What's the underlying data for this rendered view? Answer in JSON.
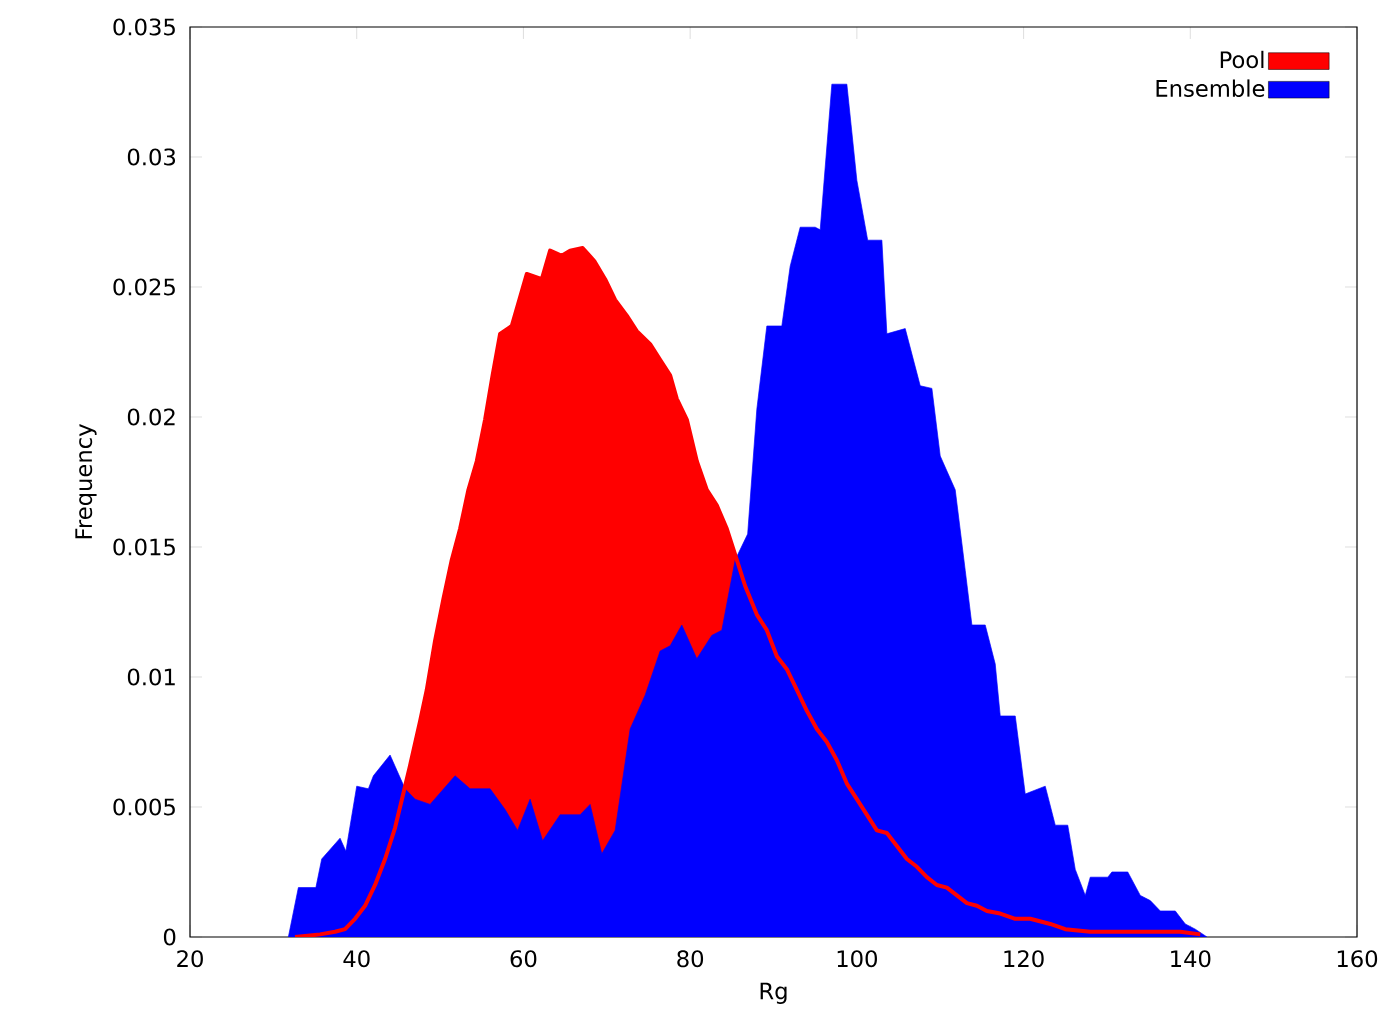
{
  "chart_data": {
    "type": "area",
    "xlabel": "Rg",
    "ylabel": "Frequency",
    "xlim": [
      20,
      160
    ],
    "ylim": [
      0,
      0.035
    ],
    "xticks": [
      20,
      40,
      60,
      80,
      100,
      120,
      140,
      160
    ],
    "yticks": [
      0,
      0.005,
      0.01,
      0.015,
      0.02,
      0.025,
      0.03,
      0.035
    ],
    "legend": "top right",
    "grid": false,
    "series": [
      {
        "name": "Pool",
        "color": "#ff0000",
        "x": [
          32.6,
          35.6,
          37.4,
          38.6,
          39.8,
          41,
          42.2,
          43.4,
          44.6,
          45.8,
          46.4,
          47.6,
          48.4,
          49.4,
          50.4,
          51.4,
          52.4,
          53.4,
          54.4,
          55.4,
          56.3,
          57.2,
          58.6,
          60.4,
          62.2,
          63.2,
          64.6,
          65.6,
          67.1,
          68.5,
          69.8,
          71,
          72.4,
          73.6,
          75.2,
          76.4,
          77.6,
          78.4,
          79.6,
          80.8,
          82,
          83.2,
          84.4,
          85.6,
          86.6,
          88,
          89.2,
          90.4,
          91.6,
          92.8,
          94,
          95.2,
          96.4,
          97.6,
          98.8,
          100,
          101.2,
          102.4,
          103.6,
          104.8,
          106,
          107.2,
          108.4,
          109.6,
          110.8,
          112,
          113.2,
          114.4,
          115.6,
          117.2,
          119,
          120.8,
          123.2,
          125,
          128,
          131.6,
          135.2,
          138.8,
          141.2
        ],
        "values": [
          0,
          0.0001,
          0.0002,
          0.0003,
          0.0007,
          0.0012,
          0.002,
          0.003,
          0.0042,
          0.0058,
          0.0066,
          0.0083,
          0.0095,
          0.0114,
          0.013,
          0.0145,
          0.0157,
          0.0172,
          0.0183,
          0.0199,
          0.0216,
          0.0232,
          0.0235,
          0.0255,
          0.0253,
          0.0264,
          0.0262,
          0.0264,
          0.0265,
          0.026,
          0.0253,
          0.0245,
          0.0239,
          0.0233,
          0.0228,
          0.0222,
          0.0216,
          0.0207,
          0.0199,
          0.0183,
          0.0172,
          0.0166,
          0.0157,
          0.0145,
          0.0135,
          0.0124,
          0.0118,
          0.0108,
          0.0103,
          0.0095,
          0.0087,
          0.008,
          0.0075,
          0.0068,
          0.0059,
          0.0053,
          0.0047,
          0.0041,
          0.004,
          0.0035,
          0.003,
          0.0027,
          0.0023,
          0.002,
          0.0019,
          0.0016,
          0.0013,
          0.0012,
          0.001,
          0.0009,
          0.0007,
          0.0007,
          0.0005,
          0.0003,
          0.0002,
          0.0002,
          0.0002,
          0.0002,
          0.0001
        ]
      },
      {
        "name": "Ensemble",
        "color": "#0000ff",
        "x": [
          31.8,
          33,
          35.1,
          35.8,
          38,
          38.7,
          40,
          41.4,
          42,
          44,
          45.8,
          47,
          48.8,
          51.8,
          53.6,
          56,
          57.8,
          59.3,
          60.8,
          62.3,
          64.4,
          66.8,
          68,
          69.4,
          71,
          72.8,
          74.6,
          76.4,
          77.6,
          79,
          80.8,
          82.6,
          83.8,
          85.4,
          86.9,
          88,
          89.2,
          91,
          92,
          93.2,
          95,
          95.6,
          97,
          98.8,
          100,
          101.3,
          103,
          103.6,
          105.8,
          107.6,
          109,
          110,
          111.8,
          113,
          113.8,
          115.4,
          116.6,
          117.2,
          119,
          120.2,
          122.6,
          123.8,
          125.3,
          126.2,
          127.4,
          128,
          130.1,
          130.6,
          132.5,
          134,
          135.2,
          136.4,
          138.2,
          139.4,
          140.6,
          142
        ],
        "values": [
          0,
          0.0019,
          0.0019,
          0.003,
          0.0038,
          0.0033,
          0.0058,
          0.0057,
          0.0062,
          0.007,
          0.0057,
          0.0053,
          0.0051,
          0.0062,
          0.0057,
          0.0057,
          0.0049,
          0.0041,
          0.0053,
          0.0037,
          0.0047,
          0.0047,
          0.0051,
          0.0032,
          0.0041,
          0.008,
          0.0093,
          0.011,
          0.0112,
          0.012,
          0.0107,
          0.0116,
          0.0118,
          0.0145,
          0.0155,
          0.0203,
          0.0235,
          0.0235,
          0.0258,
          0.0273,
          0.0273,
          0.0272,
          0.0328,
          0.0328,
          0.0291,
          0.0268,
          0.0268,
          0.0232,
          0.0234,
          0.0212,
          0.0211,
          0.0185,
          0.0172,
          0.0141,
          0.012,
          0.012,
          0.0105,
          0.0085,
          0.0085,
          0.0055,
          0.0058,
          0.0043,
          0.0043,
          0.0026,
          0.0016,
          0.0023,
          0.0023,
          0.0025,
          0.0025,
          0.0016,
          0.0014,
          0.001,
          0.001,
          0.0005,
          0.0003,
          0
        ]
      }
    ]
  }
}
